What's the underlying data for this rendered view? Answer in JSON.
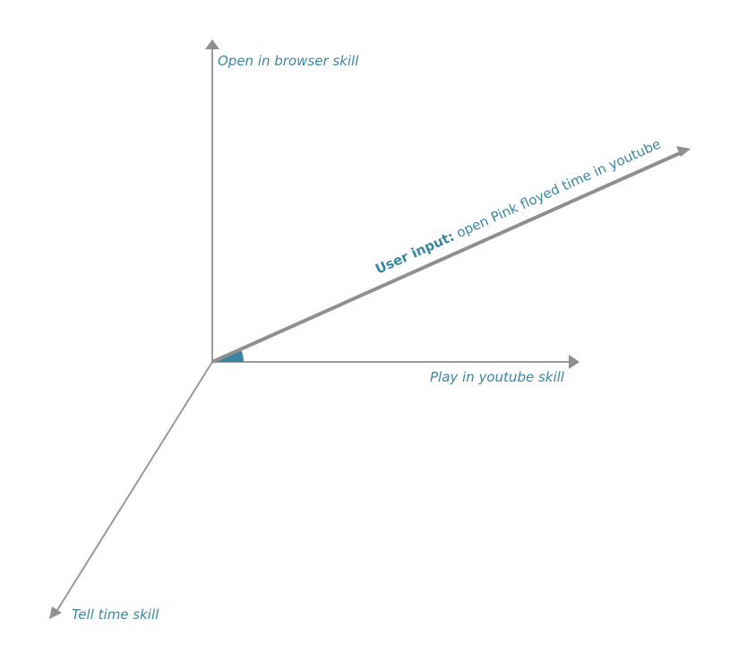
{
  "axes": {
    "open_browser": {
      "label": "Open in browser skill"
    },
    "play_youtube": {
      "label": "Play in  youtube skill"
    },
    "tell_time": {
      "label": "Tell time skill"
    }
  },
  "user_input": {
    "prefix": "User input:",
    "text": " open Pink floyed time in youtube"
  },
  "colors": {
    "axis": "#9a9a9a",
    "label": "#3b87a3",
    "angle_marker": "#3a86a2"
  }
}
